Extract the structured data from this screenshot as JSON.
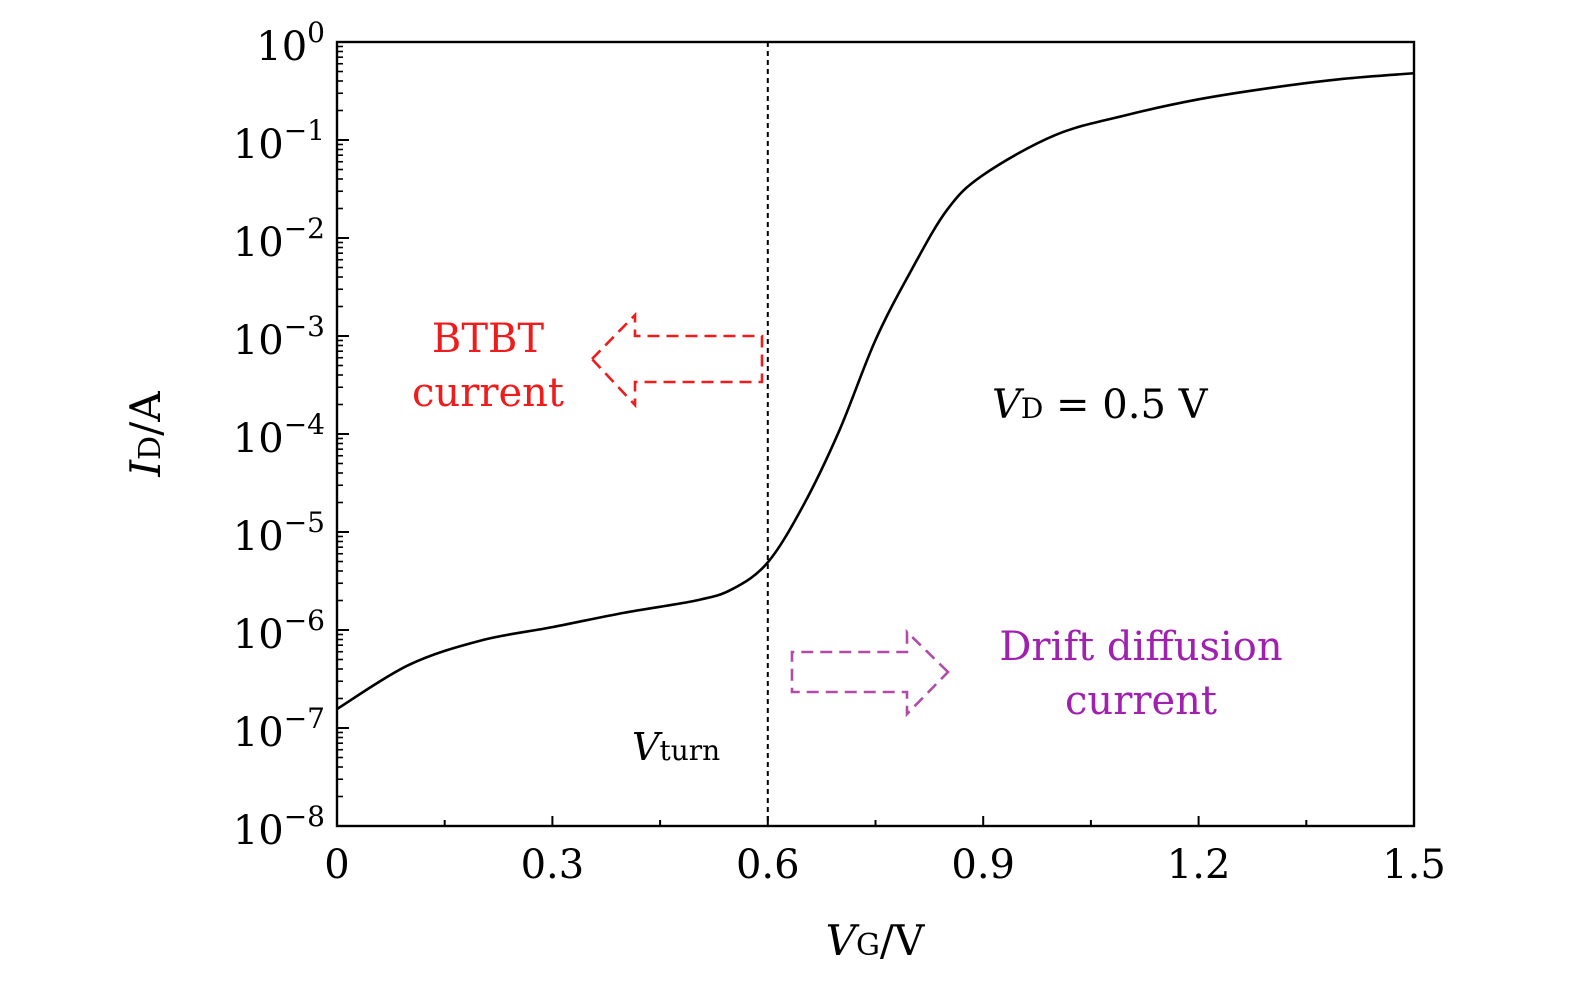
{
  "chart_data": {
    "type": "line",
    "title": "",
    "xlabel": {
      "main": "V",
      "sub": "G",
      "unit": "/V"
    },
    "ylabel": {
      "main": "I",
      "sub": "D",
      "unit": "/A"
    },
    "xlim": [
      0,
      1.5
    ],
    "ylim": [
      1e-08,
      1
    ],
    "yscale": "log",
    "xticks": [
      0,
      0.3,
      0.6,
      0.9,
      1.2,
      1.5
    ],
    "xtick_labels": [
      "0",
      "0.3",
      "0.6",
      "0.9",
      "1.2",
      "1.5"
    ],
    "yticks_exponents": [
      0,
      -1,
      -2,
      -3,
      -4,
      -5,
      -6,
      -7,
      -8
    ],
    "ytick_base": "10",
    "grid": false,
    "series": [
      {
        "name": "I_D",
        "color": "#000000",
        "x": [
          0,
          0.1,
          0.2,
          0.3,
          0.4,
          0.5,
          0.55,
          0.6,
          0.65,
          0.7,
          0.75,
          0.8,
          0.85,
          0.9,
          1.0,
          1.1,
          1.2,
          1.3,
          1.4,
          1.5
        ],
        "y": [
          1.56e-07,
          4.4e-07,
          7.8e-07,
          1.07e-06,
          1.5e-06,
          2e-06,
          2.6e-06,
          4.9e-06,
          1.9e-05,
          0.00011,
          0.00091,
          0.0047,
          0.0195,
          0.044,
          0.112,
          0.18,
          0.26,
          0.34,
          0.42,
          0.48
        ]
      }
    ],
    "vline": {
      "x": 0.6,
      "label_main": "V",
      "label_sub": "turn"
    },
    "annotations": {
      "btbt_line1": "BTBT",
      "btbt_line2": "current",
      "btbt_color": "#ee1c1c",
      "dd_line1": "Drift diffusion",
      "dd_line2": "current",
      "dd_text_color": "#a020b0",
      "dd_arrow_color": "#b04ca8",
      "vd_main": "V",
      "vd_sub": "D",
      "vd_rest": " = 0.5  V"
    }
  }
}
